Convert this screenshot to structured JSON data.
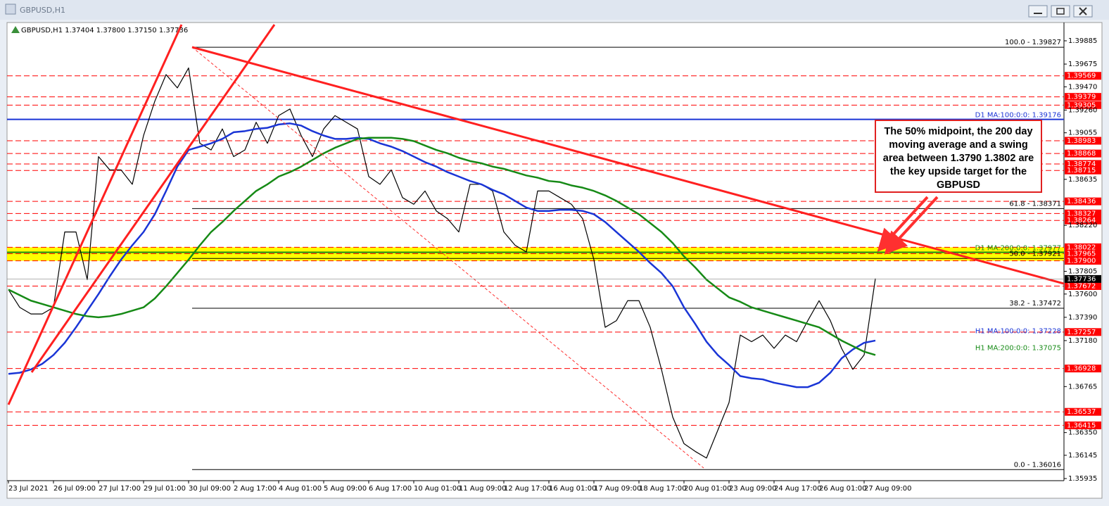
{
  "window_title": "GBPUSD,H1",
  "chart_data": {
    "type": "line",
    "header": "GBPUSD,H1  1.37404 1.37800 1.37150 1.37736",
    "categories": [
      "23 Jul 2021",
      null,
      null,
      null,
      "26 Jul 09:00",
      null,
      null,
      null,
      "27 Jul 17:00",
      null,
      null,
      null,
      "29 Jul 01:00",
      null,
      null,
      null,
      "30 Jul 09:00",
      null,
      null,
      null,
      "2 Aug 17:00",
      null,
      null,
      null,
      "4 Aug 01:00",
      null,
      null,
      null,
      "5 Aug 09:00",
      null,
      null,
      null,
      "6 Aug 17:00",
      null,
      null,
      null,
      "10 Aug 01:00",
      null,
      null,
      null,
      "11 Aug 09:00",
      null,
      null,
      null,
      "12 Aug 17:00",
      null,
      null,
      null,
      "16 Aug 01:00",
      null,
      null,
      null,
      "17 Aug 09:00",
      null,
      null,
      null,
      "18 Aug 17:00",
      null,
      null,
      null,
      "20 Aug 01:00",
      null,
      null,
      null,
      "23 Aug 09:00",
      null,
      null,
      null,
      "24 Aug 17:00",
      null,
      null,
      null,
      "26 Aug 01:00",
      null,
      null,
      null,
      "27 Aug 09:00",
      null
    ],
    "series": [
      {
        "color": "#000000",
        "width": 1.2,
        "values": [
          1.3764,
          1.3748,
          1.3742,
          1.3742,
          1.3748,
          1.3816,
          1.3816,
          1.3773,
          1.3884,
          1.3872,
          1.3872,
          1.3859,
          1.3903,
          1.3934,
          1.3958,
          1.3946,
          1.3964,
          1.3896,
          1.389,
          1.3909,
          1.3884,
          1.389,
          1.3915,
          1.3896,
          1.3921,
          1.3927,
          1.3903,
          1.3884,
          1.3909,
          1.3921,
          1.3915,
          1.3909,
          1.3866,
          1.3859,
          1.3872,
          1.3847,
          1.3841,
          1.3853,
          1.3835,
          1.3828,
          1.3816,
          1.3859,
          1.3859,
          1.3853,
          1.3816,
          1.3804,
          1.3798,
          1.3853,
          1.3853,
          1.3847,
          1.3841,
          1.3828,
          1.3791,
          1.373,
          1.3736,
          1.3754,
          1.3754,
          1.373,
          1.3692,
          1.3649,
          1.3625,
          1.3618,
          1.3612,
          1.3637,
          1.3662,
          1.3723,
          1.3717,
          1.3723,
          1.3711,
          1.3723,
          1.3717,
          1.3736,
          1.3754,
          1.3736,
          1.3711,
          1.3692,
          1.3705,
          1.3774
        ]
      },
      {
        "color": "#1a35d6",
        "width": 2.5,
        "values": [
          1.3688,
          1.3689,
          1.3692,
          1.3697,
          1.3705,
          1.3716,
          1.373,
          1.3745,
          1.376,
          1.3776,
          1.3791,
          1.3804,
          1.3816,
          1.3832,
          1.3853,
          1.3875,
          1.389,
          1.3893,
          1.3896,
          1.39,
          1.3906,
          1.3907,
          1.3909,
          1.391,
          1.3913,
          1.3914,
          1.3912,
          1.3907,
          1.3903,
          1.39,
          1.39,
          1.3901,
          1.39,
          1.3896,
          1.3893,
          1.3889,
          1.3884,
          1.3879,
          1.3875,
          1.387,
          1.3866,
          1.3862,
          1.3859,
          1.3854,
          1.385,
          1.3844,
          1.3838,
          1.3835,
          1.3835,
          1.3836,
          1.3836,
          1.3835,
          1.3832,
          1.3825,
          1.3816,
          1.3807,
          1.3798,
          1.3788,
          1.3779,
          1.3767,
          1.3748,
          1.3733,
          1.3717,
          1.3705,
          1.3696,
          1.3686,
          1.3684,
          1.3683,
          1.368,
          1.3678,
          1.3676,
          1.3676,
          1.368,
          1.3689,
          1.3702,
          1.371,
          1.3716,
          1.3718
        ]
      },
      {
        "color": "#168a16",
        "width": 2.5,
        "values": [
          1.3764,
          1.3759,
          1.3754,
          1.3751,
          1.3748,
          1.3745,
          1.3742,
          1.374,
          1.3739,
          1.374,
          1.3742,
          1.3745,
          1.3748,
          1.3756,
          1.3767,
          1.3779,
          1.3791,
          1.3804,
          1.3816,
          1.3825,
          1.3835,
          1.3844,
          1.3853,
          1.3859,
          1.3866,
          1.387,
          1.3875,
          1.3881,
          1.3887,
          1.3892,
          1.3896,
          1.39,
          1.3901,
          1.3901,
          1.3901,
          1.39,
          1.3898,
          1.3894,
          1.389,
          1.3887,
          1.3883,
          1.388,
          1.3878,
          1.3875,
          1.3873,
          1.387,
          1.3867,
          1.3865,
          1.3862,
          1.3861,
          1.3858,
          1.3856,
          1.3853,
          1.3849,
          1.3844,
          1.3838,
          1.3832,
          1.3824,
          1.3816,
          1.3806,
          1.3794,
          1.3784,
          1.3773,
          1.3765,
          1.3757,
          1.3753,
          1.3748,
          1.3745,
          1.3742,
          1.3739,
          1.3736,
          1.3733,
          1.373,
          1.3724,
          1.3718,
          1.3713,
          1.3708,
          1.3705
        ]
      }
    ],
    "ylim": [
      1.35916,
      1.4005
    ],
    "yticks": [
      1.39885,
      1.39675,
      {
        "value": 1.3947,
        "label": "1.39470"
      },
      {
        "value": 1.3926,
        "label": "1.39260"
      },
      1.39055,
      1.38635,
      {
        "value": 1.3822,
        "label": "1.38220"
      },
      1.37805,
      {
        "value": 1.376,
        "label": "1.37600"
      },
      {
        "value": 1.3739,
        "label": "1.37390"
      },
      {
        "value": 1.3718,
        "label": "1.37180"
      },
      1.36765,
      {
        "value": 1.3635,
        "label": "1.36350"
      },
      1.36145,
      1.35935
    ],
    "levels": [
      1.39569,
      1.39379,
      1.39305,
      1.38983,
      1.38868,
      1.38774,
      1.38715,
      1.38436,
      1.38327,
      1.38264,
      1.38022,
      1.37965,
      {
        "value": 1.379,
        "label": "1.37900"
      },
      1.37672,
      1.37257,
      1.36928,
      1.36537,
      1.36415
    ],
    "level_color": "#ff0000",
    "zone_color": "#ffff00",
    "fib_levels": [
      {
        "value": 1.39827,
        "label": "100.0 - 1.39827"
      },
      {
        "value": 1.38371,
        "label": "61.8 - 1.38371"
      },
      {
        "value": 1.37921,
        "label": "50.0 - 1.37921"
      },
      {
        "value": 1.37472,
        "label": "38.2 - 1.37472"
      },
      {
        "value": 1.36016,
        "label": "0.0 - 1.36016"
      }
    ],
    "ma_labels": [
      {
        "value": 1.39176,
        "label": "D1 MA:100:0:0: 1.39176",
        "color": "#1a35d6",
        "line": true
      },
      {
        "value": 1.37977,
        "label": "D1 MA:200:0:0: 1.37977",
        "color": "#168a16",
        "line": true
      },
      {
        "value": 1.37228,
        "label": "H1 MA:100:0:0: 1.37228",
        "color": "#1a35d6",
        "line": false
      },
      {
        "value": 1.37075,
        "label": "H1 MA:200:0:0: 1.37075",
        "color": "#168a16",
        "line": false
      }
    ],
    "current_price": 1.37736,
    "annotation": "The 50% midpoint, the 200 day moving average and a swing area between 1.3790 1.3802 are the key upside target for the GBPUSD"
  }
}
